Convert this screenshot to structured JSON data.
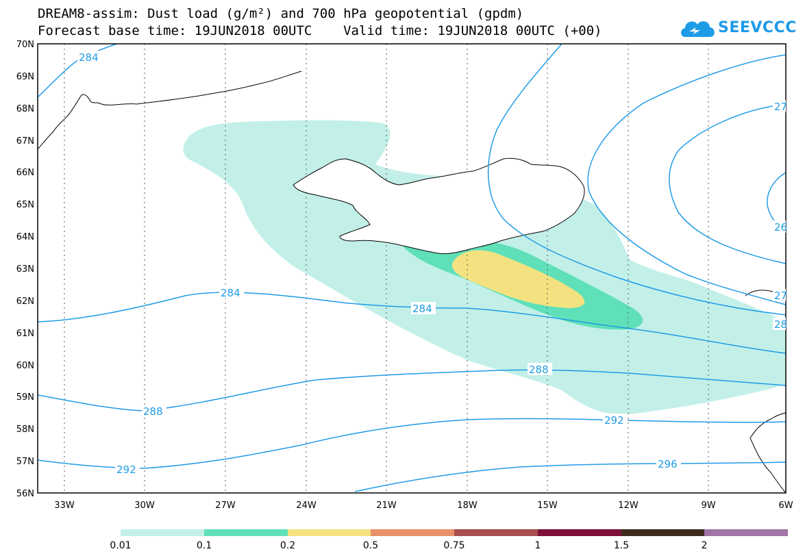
{
  "header": {
    "title_line1": "DREAM8-assim: Dust load (g/m²) and 700 hPa geopotential (gpdm)",
    "title_line2": "Forecast base time: 19JUN2018 00UTC    Valid time: 19JUN2018 00UTC (+00)"
  },
  "logo": {
    "text": "SEEVCCC",
    "icon": "cloud-icon",
    "color": "#1e9be6"
  },
  "map": {
    "lon_range": [
      -34.3,
      -6
    ],
    "lat_range": [
      56,
      70
    ],
    "lat_labels": [
      "70N",
      "69N",
      "68N",
      "67N",
      "66N",
      "65N",
      "64N",
      "63N",
      "62N",
      "61N",
      "60N",
      "59N",
      "58N",
      "57N",
      "56N"
    ],
    "lon_labels": [
      "33W",
      "30W",
      "27W",
      "24W",
      "21W",
      "18W",
      "15W",
      "12W",
      "9W",
      "6W"
    ],
    "gridlines": "dotted",
    "contour_color": "#1e9be6",
    "contour_labels": [
      {
        "text": "284"
      },
      {
        "text": "284"
      },
      {
        "text": "284"
      },
      {
        "text": "288"
      },
      {
        "text": "288"
      },
      {
        "text": "292"
      },
      {
        "text": "292"
      },
      {
        "text": "296"
      },
      {
        "text": "27"
      },
      {
        "text": "26"
      },
      {
        "text": "27"
      },
      {
        "text": "28"
      }
    ]
  },
  "legend": {
    "colors": [
      "#c2f0e9",
      "#5fe0b8",
      "#f4e281",
      "#e8906a",
      "#a94d4d",
      "#7d0f38",
      "#3d2b1f",
      "#a074a5"
    ],
    "labels": [
      "0.01",
      "0.1",
      "0.2",
      "0.5",
      "0.75",
      "1",
      "1.5",
      "2"
    ]
  }
}
